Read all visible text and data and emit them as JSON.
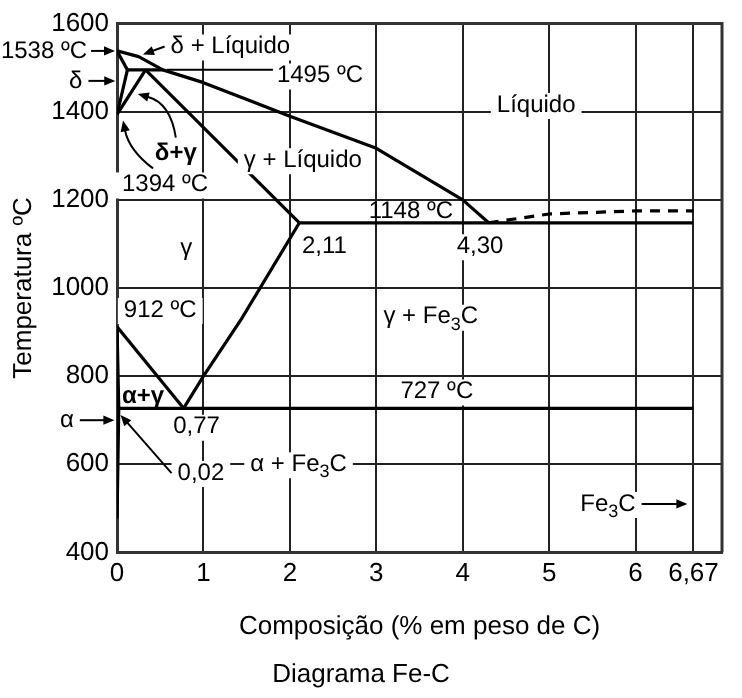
{
  "chart_data": {
    "type": "line",
    "title": "Diagrama Fe-C",
    "xlabel": "Composição (% em peso de C)",
    "ylabel": "Temperatura ºC",
    "xlim": [
      0,
      7
    ],
    "ylim": [
      400,
      1600
    ],
    "xticks": [
      0,
      1,
      2,
      3,
      4,
      5,
      6,
      {
        "value": 6.67,
        "label": "6,67"
      }
    ],
    "yticks": [
      400,
      600,
      800,
      1000,
      1200,
      1400,
      1600
    ],
    "grid": true,
    "legend": false,
    "marker": "none",
    "series": [
      {
        "color": "#000000",
        "x": [
          0,
          0.25,
          0.53,
          1,
          2,
          3,
          4,
          4.3
        ],
        "values": [
          1538,
          1525,
          1495,
          1466,
          1390,
          1317,
          1200,
          1148
        ]
      },
      {
        "color": "#000000",
        "x": [
          0,
          0.12
        ],
        "values": [
          1538,
          1495
        ]
      },
      {
        "color": "#000000",
        "x": [
          0.12,
          0.53
        ],
        "values": [
          1495,
          1495
        ]
      },
      {
        "color": "#000000",
        "x": [
          0.12,
          0
        ],
        "values": [
          1495,
          1394
        ]
      },
      {
        "color": "#000000",
        "x": [
          0.33,
          0
        ],
        "values": [
          1495,
          1394
        ]
      },
      {
        "color": "#000000",
        "x": [
          0.33,
          2.11
        ],
        "values": [
          1495,
          1148
        ]
      },
      {
        "color": "#000000",
        "x": [
          2.11,
          6.67
        ],
        "values": [
          1148,
          1148
        ]
      },
      {
        "color": "#000000",
        "line_style": "dashed",
        "x": [
          4.3,
          5,
          6,
          6.67
        ],
        "values": [
          1148,
          1168,
          1175,
          1175
        ]
      },
      {
        "color": "#000000",
        "x": [
          0.77,
          1,
          1.44,
          2.11
        ],
        "values": [
          727,
          800,
          930,
          1148
        ]
      },
      {
        "color": "#000000",
        "x": [
          0,
          0.77
        ],
        "values": [
          912,
          727
        ]
      },
      {
        "color": "#000000",
        "x": [
          0,
          0.02,
          0.01,
          0
        ],
        "values": [
          912,
          727,
          600,
          480
        ]
      },
      {
        "color": "#000000",
        "x": [
          0.02,
          6.67
        ],
        "values": [
          727,
          727
        ]
      }
    ],
    "annotations": [
      {
        "text": "1538 ºC",
        "x": 0,
        "y": 1538
      },
      "δ + Líquido",
      "1495 ºC",
      "δ",
      "δ+γ",
      {
        "text": "1394 ºC",
        "x": 0,
        "y": 1394
      },
      "Líquido",
      "γ + Líquido",
      "1148 ºC",
      "γ",
      "2,11",
      "4,30",
      "γ + Fe$_{3}$C",
      "912 ºC",
      "727 ºC",
      "α+γ",
      "0,77",
      "α",
      "0,02",
      "α + Fe$_{3}$C",
      "Fe$_{3}$C"
    ]
  }
}
